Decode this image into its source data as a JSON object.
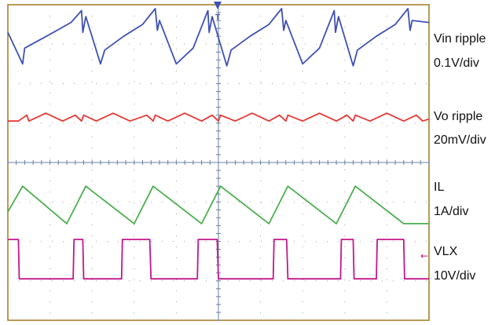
{
  "title_fragment": "(      )",
  "chart_data": {
    "type": "line",
    "title": "",
    "xlabel": "",
    "ylabel": "",
    "grid": true,
    "xlim": [
      0,
      10
    ],
    "ylim": [
      0,
      8
    ],
    "series": [
      {
        "name": "Vin ripple",
        "scale": "0.1V/div",
        "color": "#3f51b5",
        "x": [
          0,
          0.35,
          0.4,
          1.0,
          1.5,
          1.75,
          1.78,
          1.85,
          2.2,
          2.3,
          2.75,
          3.2,
          3.5,
          3.55,
          3.6,
          4.0,
          4.4,
          4.75,
          4.78,
          4.85,
          5.2,
          5.3,
          5.75,
          6.2,
          6.5,
          6.55,
          6.6,
          7.0,
          7.4,
          7.75,
          7.78,
          7.85,
          8.2,
          8.3,
          8.75,
          9.2,
          9.5,
          9.55,
          9.6,
          10.0
        ],
        "y": [
          7.3,
          6.5,
          6.9,
          7.25,
          7.55,
          7.85,
          7.3,
          7.7,
          6.5,
          6.85,
          7.2,
          7.5,
          7.9,
          7.35,
          7.6,
          6.5,
          6.9,
          7.85,
          7.3,
          7.7,
          6.45,
          6.85,
          7.2,
          7.5,
          7.9,
          7.35,
          7.6,
          6.5,
          6.9,
          7.85,
          7.3,
          7.7,
          6.45,
          6.85,
          7.2,
          7.5,
          7.9,
          7.35,
          7.6,
          7.55
        ]
      },
      {
        "name": "Vo ripple",
        "scale": "20mV/div",
        "color": "#e53935",
        "x": [
          0,
          0.25,
          0.45,
          0.5,
          0.9,
          1.3,
          1.6,
          1.75,
          1.8,
          2.1,
          2.5,
          2.9,
          3.3,
          3.45,
          3.5,
          3.8,
          4.2,
          4.6,
          4.85,
          5.0,
          5.05,
          5.4,
          5.8,
          6.2,
          6.45,
          6.6,
          6.65,
          7.0,
          7.4,
          7.8,
          8.05,
          8.2,
          8.25,
          8.6,
          9.0,
          9.4,
          9.7,
          9.85,
          10.0
        ],
        "y": [
          5.05,
          5.05,
          5.2,
          5.05,
          5.25,
          5.05,
          5.2,
          5.05,
          5.2,
          5.05,
          5.25,
          5.05,
          5.2,
          5.05,
          5.2,
          5.05,
          5.25,
          5.05,
          5.2,
          5.05,
          5.2,
          5.05,
          5.25,
          5.05,
          5.2,
          5.05,
          5.2,
          5.05,
          5.25,
          5.05,
          5.2,
          5.05,
          5.2,
          5.05,
          5.25,
          5.05,
          5.2,
          5.05,
          5.1
        ]
      },
      {
        "name": "IL",
        "scale": "1A/div",
        "color": "#4caf50",
        "x": [
          0,
          0.35,
          1.4,
          1.85,
          3.0,
          3.45,
          4.6,
          5.05,
          6.2,
          6.65,
          7.8,
          8.25,
          9.4,
          10.0
        ],
        "y": [
          2.75,
          3.4,
          2.45,
          3.4,
          2.45,
          3.4,
          2.45,
          3.4,
          2.45,
          3.4,
          2.45,
          3.4,
          2.45,
          2.45
        ]
      },
      {
        "name": "VLX",
        "scale": "10V/div",
        "color": "#c2188b",
        "x": [
          0,
          0.25,
          0.27,
          1.55,
          1.57,
          1.78,
          1.8,
          2.7,
          2.72,
          3.37,
          3.4,
          4.5,
          4.52,
          4.97,
          5.0,
          6.3,
          6.32,
          6.62,
          6.65,
          7.9,
          7.92,
          8.2,
          8.22,
          8.75,
          8.77,
          9.4,
          9.42,
          10.0
        ],
        "y": [
          2.05,
          2.05,
          1.05,
          1.05,
          2.05,
          2.05,
          1.05,
          1.05,
          2.05,
          2.05,
          1.05,
          1.05,
          2.05,
          2.05,
          1.05,
          1.05,
          2.05,
          2.05,
          1.05,
          1.05,
          2.05,
          2.05,
          1.05,
          1.05,
          2.05,
          2.05,
          1.05,
          1.05
        ]
      }
    ]
  }
}
